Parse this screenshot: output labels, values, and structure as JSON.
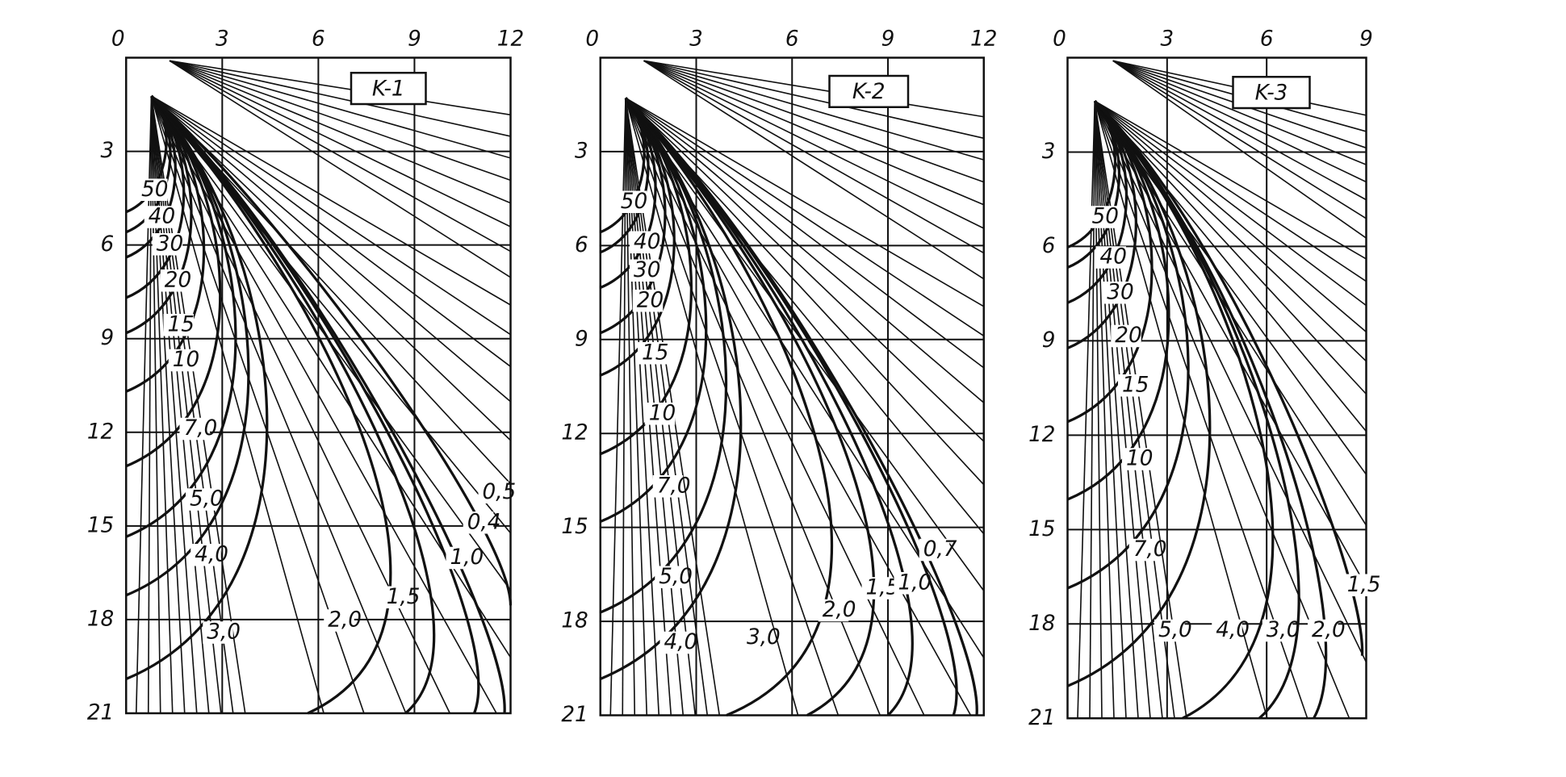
{
  "panels": [
    {
      "title": "K-1",
      "x_labels": [
        "0",
        "3",
        "6",
        "9",
        "12"
      ],
      "y_labels": [
        "3",
        "6",
        "9",
        "12",
        "15",
        "18",
        "21"
      ],
      "curve_labels": [
        "50",
        "40",
        "30",
        "20",
        "15",
        "10",
        "7,0",
        "5,0",
        "4,0",
        "3,0",
        "2,0",
        "1,5",
        "1,0",
        "0,4",
        "0,5"
      ]
    },
    {
      "title": "K-2",
      "x_labels": [
        "0",
        "3",
        "6",
        "9",
        "12"
      ],
      "y_labels": [
        "3",
        "6",
        "9",
        "12",
        "15",
        "18",
        "21"
      ],
      "curve_labels": [
        "50",
        "40",
        "30",
        "20",
        "15",
        "10",
        "7,0",
        "5,0",
        "4,0",
        "3,0",
        "2,0",
        "1,5",
        "1,0",
        "0,7"
      ]
    },
    {
      "title": "K-3",
      "x_labels": [
        "0",
        "3",
        "6",
        "9"
      ],
      "y_labels": [
        "3",
        "6",
        "9",
        "12",
        "15",
        "18",
        "21"
      ],
      "curve_labels": [
        "50",
        "40",
        "30",
        "20",
        "15",
        "10",
        "7,0",
        "5,0",
        "4,0",
        "3,0",
        "2,0",
        "1,5"
      ]
    }
  ]
}
